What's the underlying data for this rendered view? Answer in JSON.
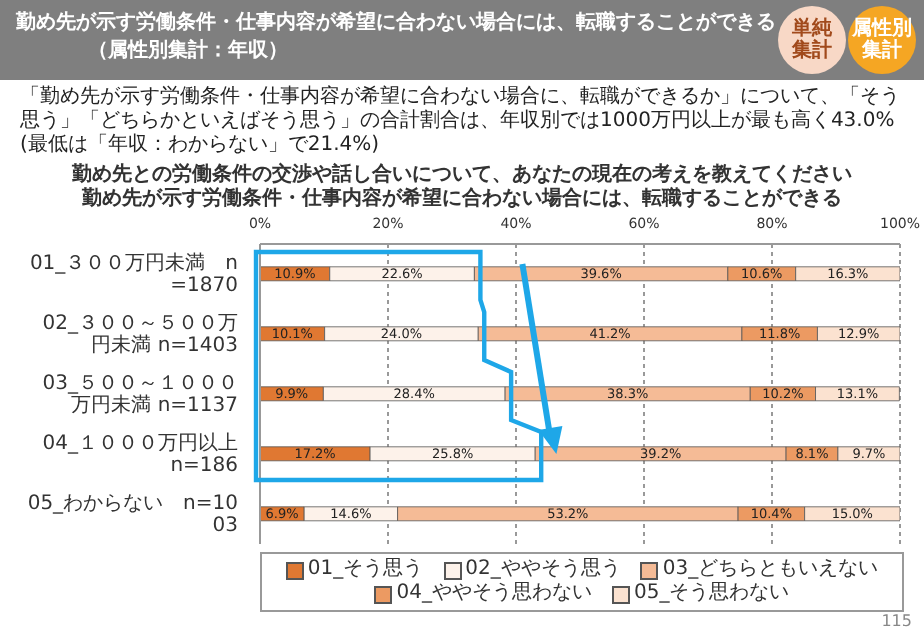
{
  "chart_data": {
    "type": "bar",
    "orientation": "horizontal",
    "stacked": true,
    "title": "勤め先が示す労働条件・仕事内容が希望に合わない場合には、転職することができる",
    "subtitle": "（属性別集計：年収）",
    "annotations": [
      "「勤め先が示す労働条件・仕事内容が希望に合わない場合に、転職ができるか」について、「そう思う」「どちらかといえばそう思う」の合計割合は、年収別では1000万円以上が最も高く43.0%(最低は「年収：わからない」で21.4%)",
      "勤め先との労働条件の交渉や話し合いについて、あなたの現在の考えを教えてください",
      "勤め先が示す労働条件・仕事内容が希望に合わない場合には、転職することができる",
      "単純集計",
      "属性別集計",
      "115"
    ],
    "categories": [
      "01_３００万円未満　n=1870",
      "02_３００～５００万円未満 n=1403",
      "03_５００～１０００万円未満 n=1137",
      "04_１０００万円以上　n=186",
      "05_わからない　n=1003"
    ],
    "series": [
      {
        "name": "01_そう思う",
        "color": "#e07832",
        "values": [
          10.9,
          10.1,
          9.9,
          17.2,
          6.9
        ]
      },
      {
        "name": "02_ややそう思う",
        "color": "#fdf2ea",
        "values": [
          22.6,
          24.0,
          28.4,
          25.8,
          14.6
        ]
      },
      {
        "name": "03_どちらともいえない",
        "color": "#f5bb96",
        "values": [
          39.6,
          41.2,
          38.3,
          39.2,
          53.2
        ]
      },
      {
        "name": "04_ややそう思わない",
        "color": "#ec9a62",
        "values": [
          10.6,
          11.8,
          10.2,
          8.1,
          10.4
        ]
      },
      {
        "name": "05_そう思わない",
        "color": "#fbe2d0",
        "values": [
          16.3,
          12.9,
          13.1,
          9.7,
          15.0
        ]
      }
    ],
    "value_labels": [
      "10.9%",
      "10.1%",
      "9.9%",
      "17.2%",
      "6.9%",
      "22.6%",
      "24.0%",
      "28.4%",
      "25.8%",
      "14.6%",
      "39.6%",
      "41.2%",
      "38.3%",
      "39.2%",
      "53.2%",
      "10.6%",
      "11.8%",
      "10.2%",
      "8.1%",
      "10.4%",
      "16.3%",
      "12.9%",
      "13.1%",
      "9.7%",
      "15.0%"
    ],
    "xlim": [
      0,
      100
    ],
    "xticks": [
      {
        "value": 0,
        "label": "0%"
      },
      {
        "value": 20,
        "label": "20%"
      },
      {
        "value": 40,
        "label": "40%"
      },
      {
        "value": 60,
        "label": "60%"
      },
      {
        "value": 80,
        "label": "80%"
      },
      {
        "value": 100,
        "label": "100%"
      }
    ],
    "grid": "x",
    "legend": "bottom"
  }
}
